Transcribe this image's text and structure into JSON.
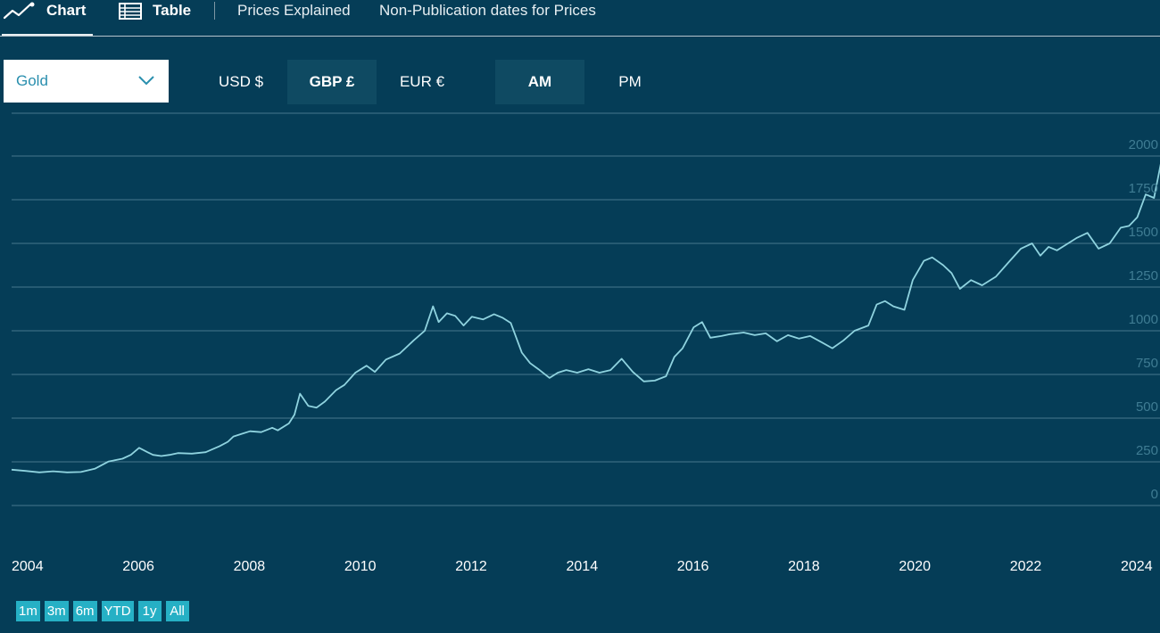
{
  "nav": {
    "chart_tab": "Chart",
    "table_tab": "Table",
    "prices_explained": "Prices Explained",
    "non_publication": "Non-Publication dates for Prices"
  },
  "controls": {
    "metal": "Gold",
    "currencies": [
      "USD $",
      "GBP £",
      "EUR €"
    ],
    "active_currency": "GBP £",
    "fixings": [
      "AM",
      "PM"
    ],
    "active_fixing": "AM"
  },
  "range_buttons": [
    "1m",
    "3m",
    "6m",
    "YTD",
    "1y",
    "All"
  ],
  "colors": {
    "background": "#053d57",
    "line": "#8fd3df",
    "gridline": "#46768d",
    "range_button": "#26b0c5",
    "select_text": "#2a8fae"
  },
  "chart_data": {
    "type": "line",
    "ylim": [
      0,
      2000
    ],
    "y_ticks": [
      0,
      250,
      500,
      750,
      1000,
      1250,
      1500,
      1750,
      2000
    ],
    "y_tick_labels": [
      "0",
      "250",
      "500",
      "750",
      "1000",
      "1250",
      "1500",
      "1750",
      "2000"
    ],
    "x_ticks": [
      2004,
      2006,
      2008,
      2010,
      2012,
      2014,
      2016,
      2018,
      2020,
      2022,
      2024
    ],
    "x_tick_labels": [
      "2004",
      "2006",
      "2008",
      "2010",
      "2012",
      "2014",
      "2016",
      "2018",
      "2020",
      "2022",
      "2024"
    ],
    "grid": true,
    "series": [
      {
        "x": [
          2004.0,
          2004.25,
          2004.5,
          2004.75,
          2005.0,
          2005.25,
          2005.5,
          2005.75,
          2006.0,
          2006.15,
          2006.3,
          2006.45,
          2006.55,
          2006.7,
          2006.85,
          2007.0,
          2007.25,
          2007.5,
          2007.75,
          2007.9,
          2008.0,
          2008.15,
          2008.3,
          2008.5,
          2008.7,
          2008.8,
          2009.0,
          2009.1,
          2009.2,
          2009.35,
          2009.5,
          2009.65,
          2009.85,
          2010.0,
          2010.2,
          2010.4,
          2010.55,
          2010.75,
          2011.0,
          2011.25,
          2011.45,
          2011.6,
          2011.7,
          2011.85,
          2012.0,
          2012.15,
          2012.3,
          2012.5,
          2012.7,
          2012.85,
          2013.0,
          2013.2,
          2013.35,
          2013.5,
          2013.7,
          2013.85,
          2014.0,
          2014.2,
          2014.4,
          2014.6,
          2014.8,
          2015.0,
          2015.2,
          2015.4,
          2015.6,
          2015.8,
          2015.95,
          2016.1,
          2016.3,
          2016.45,
          2016.6,
          2016.8,
          2016.95,
          2017.2,
          2017.4,
          2017.6,
          2017.8,
          2018.0,
          2018.2,
          2018.4,
          2018.6,
          2018.8,
          2019.0,
          2019.2,
          2019.45,
          2019.6,
          2019.75,
          2019.9,
          2020.1,
          2020.25,
          2020.45,
          2020.6,
          2020.8,
          2020.95,
          2021.1,
          2021.3,
          2021.5,
          2021.75,
          2022.0,
          2022.2,
          2022.4,
          2022.55,
          2022.7,
          2022.85,
          2023.0,
          2023.2,
          2023.4,
          2023.6,
          2023.8,
          2024.0,
          2024.15,
          2024.3,
          2024.45,
          2024.6,
          2024.75,
          2024.9
        ],
        "y": [
          205,
          198,
          190,
          196,
          190,
          192,
          210,
          252,
          268,
          290,
          330,
          305,
          290,
          283,
          290,
          300,
          297,
          305,
          340,
          365,
          395,
          410,
          425,
          420,
          445,
          430,
          470,
          520,
          640,
          570,
          560,
          595,
          660,
          690,
          760,
          800,
          765,
          835,
          870,
          945,
          1000,
          1140,
          1050,
          1100,
          1085,
          1030,
          1080,
          1065,
          1095,
          1075,
          1045,
          875,
          815,
          780,
          730,
          760,
          775,
          760,
          780,
          760,
          775,
          840,
          765,
          710,
          715,
          740,
          850,
          900,
          1020,
          1050,
          960,
          970,
          980,
          990,
          975,
          985,
          940,
          975,
          955,
          970,
          935,
          900,
          945,
          1000,
          1030,
          1150,
          1170,
          1140,
          1120,
          1290,
          1400,
          1420,
          1375,
          1330,
          1240,
          1290,
          1260,
          1310,
          1400,
          1470,
          1500,
          1430,
          1480,
          1460,
          1490,
          1530,
          1560,
          1470,
          1500,
          1590,
          1600,
          1650,
          1780,
          1760,
          2000,
          2060
        ]
      }
    ]
  }
}
